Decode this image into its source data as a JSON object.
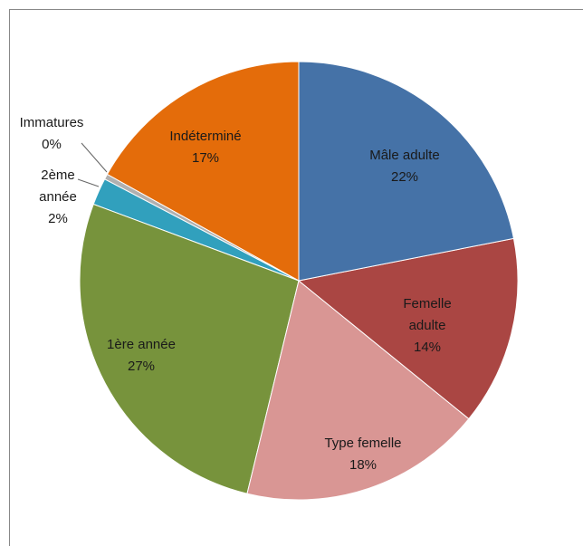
{
  "chart_data": {
    "type": "pie",
    "categories": [
      "Mâle adulte",
      "Femelle adulte",
      "Type femelle",
      "1ère année",
      "2ème année",
      "Immatures",
      "Indéterminé"
    ],
    "values": [
      22,
      14,
      18,
      27,
      2,
      0.4,
      17
    ],
    "value_labels": [
      "22%",
      "14%",
      "18%",
      "27%",
      "2%",
      "0%",
      "17%"
    ],
    "colors": [
      "#4572a7",
      "#aa4643",
      "#d99694",
      "#77933c",
      "#31a0bd",
      "#b0b0b0",
      "#e46c0a"
    ]
  }
}
